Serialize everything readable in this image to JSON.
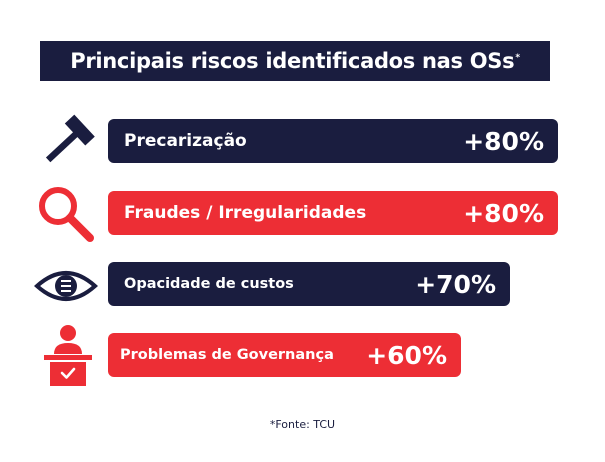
{
  "header": {
    "title": "Principais riscos identificados nas OSs",
    "title_mark": "*"
  },
  "chart_data": {
    "type": "bar",
    "orientation": "horizontal",
    "title": "Principais riscos identificados nas OSs*",
    "categories": [
      "Precarização",
      "Fraudes / Irregularidades",
      "Opacidade de custos",
      "Problemas de Governança"
    ],
    "values": [
      80,
      80,
      70,
      60
    ],
    "value_labels": [
      "+80%",
      "+80%",
      "+70%",
      "+60%"
    ],
    "unit": "%",
    "xlim": [
      0,
      80
    ],
    "colors": [
      "#1a1d3f",
      "#ed2e35",
      "#1a1d3f",
      "#ed2e35"
    ],
    "icons": [
      "hammer-icon",
      "magnifier-icon",
      "eye-icon",
      "podium-icon"
    ]
  },
  "footer": {
    "source": "*Fonte: TCU"
  },
  "colors": {
    "navy": "#1a1d3f",
    "red": "#ed2e35"
  }
}
